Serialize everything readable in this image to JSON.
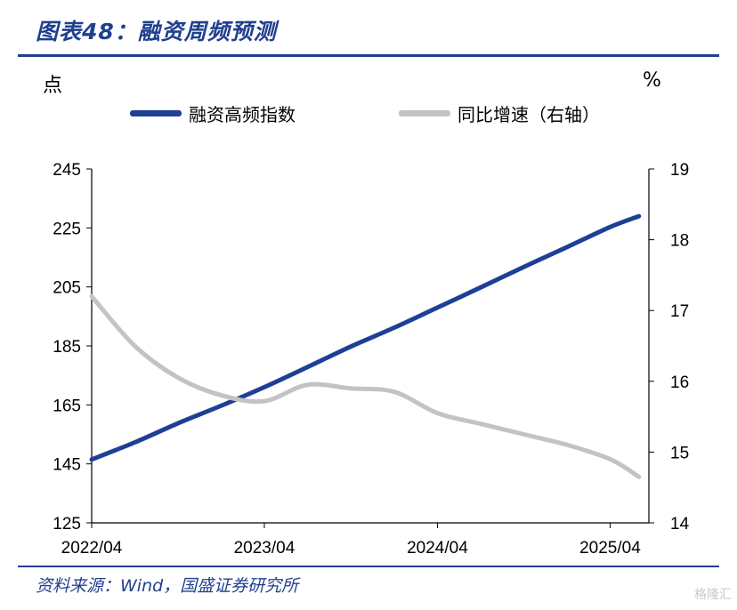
{
  "title": "图表48：融资周频预测",
  "source": "资料来源：Wind，国盛证券研究所",
  "watermark": "格隆汇",
  "chart_data": {
    "type": "line",
    "left_unit": "点",
    "right_unit": "%",
    "y_left_ticks": [
      "245",
      "225",
      "205",
      "185",
      "165",
      "145",
      "125"
    ],
    "y_right_ticks": [
      "19",
      "18",
      "17",
      "16",
      "15",
      "14"
    ],
    "x_ticks": [
      "2022/04",
      "2023/04",
      "2024/04",
      "2025/04"
    ],
    "ylim_left": [
      125,
      245
    ],
    "ylim_right": [
      14,
      19
    ],
    "legend_placement": "top",
    "series": [
      {
        "name": "融资高频指数",
        "axis": "left",
        "color": "#1e3f96",
        "x": [
          "2022-04",
          "2022-07",
          "2022-10",
          "2023-01",
          "2023-04",
          "2023-07",
          "2023-10",
          "2024-01",
          "2024-04",
          "2024-07",
          "2024-10",
          "2025-01",
          "2025-04",
          "2025-06"
        ],
        "values": [
          146.5,
          152.3,
          158.8,
          164.8,
          171.0,
          177.8,
          184.8,
          191.2,
          198.0,
          204.8,
          211.8,
          218.6,
          225.3,
          229.0
        ]
      },
      {
        "name": "同比增速（右轴）",
        "axis": "right",
        "color": "#c3c3c3",
        "x": [
          "2022-04",
          "2022-07",
          "2022-10",
          "2023-01",
          "2023-04",
          "2023-07",
          "2023-10",
          "2024-01",
          "2024-04",
          "2024-07",
          "2024-10",
          "2025-01",
          "2025-04",
          "2025-06"
        ],
        "values": [
          17.2,
          16.5,
          16.05,
          15.8,
          15.72,
          15.95,
          15.9,
          15.85,
          15.55,
          15.4,
          15.25,
          15.1,
          14.9,
          14.65
        ]
      }
    ]
  }
}
